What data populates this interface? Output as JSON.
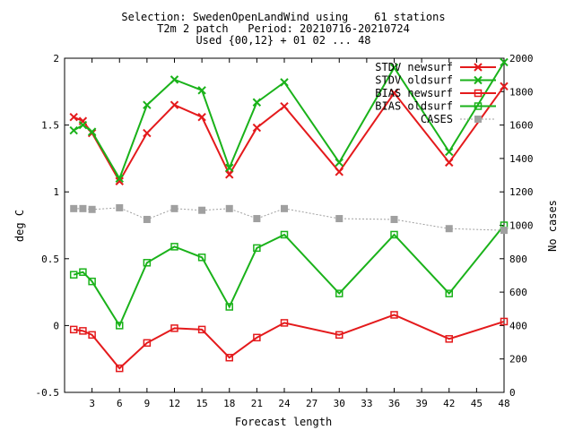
{
  "chart_data": {
    "type": "line",
    "title_lines": [
      "Selection: SwedenOpenLandWind using    61 stations",
      "T2m 2 patch   Period: 20210716-20210724",
      "Used {00,12} + 01 02 ... 48"
    ],
    "xlabel": "Forecast length",
    "ylabel": "deg C",
    "y2label": "No cases",
    "xlim": [
      0,
      48
    ],
    "ylim": [
      -0.5,
      2
    ],
    "y2lim": [
      0,
      2000
    ],
    "xticks": [
      3,
      6,
      9,
      12,
      15,
      18,
      21,
      24,
      27,
      30,
      33,
      36,
      39,
      42,
      45,
      48
    ],
    "yticks": [
      "-0.5",
      "0",
      "0.5",
      "1",
      "1.5",
      "2"
    ],
    "y2ticks": [
      "0",
      "200",
      "400",
      "600",
      "800",
      "1000",
      "1200",
      "1400",
      "1600",
      "1800",
      "2000"
    ],
    "legend_position": "top-right",
    "x": [
      1,
      2,
      3,
      6,
      9,
      12,
      15,
      18,
      21,
      24,
      30,
      36,
      42,
      48
    ],
    "series": [
      {
        "name": "STDV newsurf",
        "axis": "left",
        "color": "#e41a1c",
        "marker": "x",
        "values": [
          1.56,
          1.53,
          1.44,
          1.08,
          1.44,
          1.65,
          1.56,
          1.13,
          1.48,
          1.64,
          1.15,
          1.74,
          1.22,
          1.79
        ]
      },
      {
        "name": "STDV oldsurf",
        "axis": "left",
        "color": "#1ab21a",
        "marker": "x",
        "values": [
          1.46,
          1.5,
          1.45,
          1.1,
          1.65,
          1.84,
          1.76,
          1.18,
          1.67,
          1.82,
          1.22,
          1.93,
          1.3,
          1.97
        ]
      },
      {
        "name": "BIAS newsurf",
        "axis": "left",
        "color": "#e41a1c",
        "marker": "square",
        "values": [
          -0.03,
          -0.04,
          -0.07,
          -0.32,
          -0.13,
          -0.02,
          -0.03,
          -0.24,
          -0.09,
          0.02,
          -0.07,
          0.08,
          -0.1,
          0.03
        ]
      },
      {
        "name": "BIAS oldsurf",
        "axis": "left",
        "color": "#1ab21a",
        "marker": "square",
        "values": [
          0.38,
          0.4,
          0.33,
          0.0,
          0.47,
          0.59,
          0.51,
          0.14,
          0.58,
          0.68,
          0.24,
          0.68,
          0.24,
          0.75
        ]
      },
      {
        "name": "CASES",
        "axis": "right",
        "color": "#a0a0a0",
        "marker": "filled-square",
        "values": [
          1100,
          1100,
          1095,
          1105,
          1035,
          1100,
          1090,
          1100,
          1040,
          1100,
          1040,
          1035,
          980,
          970
        ]
      }
    ]
  }
}
